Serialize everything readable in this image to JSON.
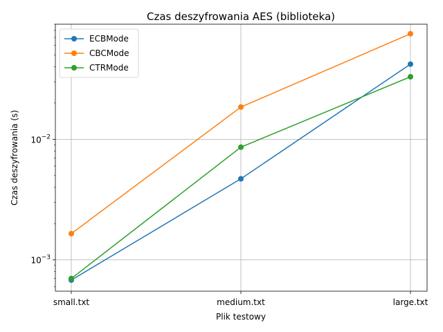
{
  "chart_data": {
    "type": "line",
    "title": "Czas deszyfrowania AES (biblioteka)",
    "xlabel": "Plik testowy",
    "ylabel": "Czas deszyfrowania (s)",
    "categories": [
      "small.txt",
      "medium.txt",
      "large.txt"
    ],
    "yscale": "log",
    "ylim": [
      0.00055,
      0.09
    ],
    "yticks": [
      {
        "value": 0.001,
        "base": "10",
        "exp": "−3"
      },
      {
        "value": 0.01,
        "base": "10",
        "exp": "−2"
      }
    ],
    "grid": true,
    "legend_position": "top-left",
    "series": [
      {
        "name": "ECBMode",
        "color": "#1f77b4",
        "values": [
          0.00068,
          0.0047,
          0.042
        ]
      },
      {
        "name": "CBCMode",
        "color": "#ff7f0e",
        "values": [
          0.00165,
          0.0185,
          0.075
        ]
      },
      {
        "name": "CTRMode",
        "color": "#2ca02c",
        "values": [
          0.0007,
          0.0086,
          0.033
        ]
      }
    ]
  }
}
